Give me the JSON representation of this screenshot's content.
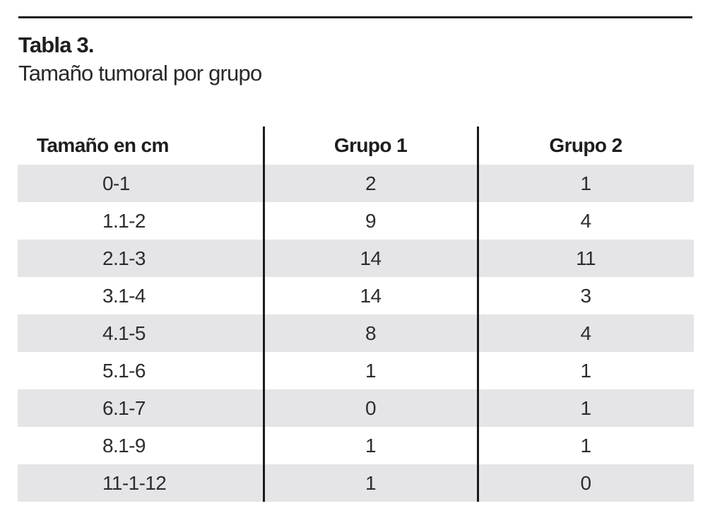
{
  "title": "Tabla 3.",
  "subtitle": "Tamaño tumoral por grupo",
  "table": {
    "columns": [
      "Tamaño en cm",
      "Grupo 1",
      "Grupo 2"
    ],
    "rows": [
      [
        "0-1",
        "2",
        "1"
      ],
      [
        "1.1-2",
        "9",
        "4"
      ],
      [
        "2.1-3",
        "14",
        "11"
      ],
      [
        "3.1-4",
        "14",
        "3"
      ],
      [
        "4.1-5",
        "8",
        "4"
      ],
      [
        "5.1-6",
        "1",
        "1"
      ],
      [
        "6.1-7",
        "0",
        "1"
      ],
      [
        "8.1-9",
        "1",
        "1"
      ],
      [
        "11-1-12",
        "1",
        "0"
      ]
    ]
  },
  "colors": {
    "stripe": "#e5e5e7",
    "rule": "#1c1c1e",
    "text": "#2e2c2f"
  }
}
